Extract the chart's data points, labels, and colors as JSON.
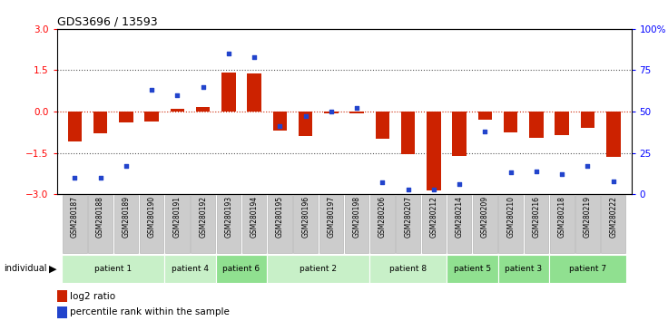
{
  "title": "GDS3696 / 13593",
  "samples": [
    "GSM280187",
    "GSM280188",
    "GSM280189",
    "GSM280190",
    "GSM280191",
    "GSM280192",
    "GSM280193",
    "GSM280194",
    "GSM280195",
    "GSM280196",
    "GSM280197",
    "GSM280198",
    "GSM280206",
    "GSM280207",
    "GSM280212",
    "GSM280214",
    "GSM280209",
    "GSM280210",
    "GSM280216",
    "GSM280218",
    "GSM280219",
    "GSM280222"
  ],
  "log2_ratio": [
    -1.1,
    -0.8,
    -0.4,
    -0.35,
    0.1,
    0.15,
    1.43,
    1.38,
    -0.7,
    -0.9,
    -0.05,
    -0.07,
    -1.0,
    -1.55,
    -2.85,
    -1.6,
    -0.3,
    -0.75,
    -0.95,
    -0.85,
    -0.6,
    -1.65
  ],
  "percentile": [
    10,
    10,
    17,
    63,
    60,
    65,
    85,
    83,
    41,
    47,
    50,
    52,
    7,
    3,
    3,
    6,
    38,
    13,
    14,
    12,
    17,
    8
  ],
  "patients": [
    {
      "label": "patient 1",
      "indices": [
        0,
        1,
        2,
        3
      ],
      "color": "#c8f0c8"
    },
    {
      "label": "patient 4",
      "indices": [
        4,
        5
      ],
      "color": "#c8f0c8"
    },
    {
      "label": "patient 6",
      "indices": [
        6,
        7
      ],
      "color": "#90e090"
    },
    {
      "label": "patient 2",
      "indices": [
        8,
        9,
        10,
        11
      ],
      "color": "#c8f0c8"
    },
    {
      "label": "patient 8",
      "indices": [
        12,
        13,
        14
      ],
      "color": "#c8f0c8"
    },
    {
      "label": "patient 5",
      "indices": [
        15,
        16
      ],
      "color": "#90e090"
    },
    {
      "label": "patient 3",
      "indices": [
        17,
        18
      ],
      "color": "#90e090"
    },
    {
      "label": "patient 7",
      "indices": [
        19,
        20,
        21
      ],
      "color": "#90e090"
    }
  ],
  "ylim_left": [
    -3,
    3
  ],
  "ylim_right": [
    0,
    100
  ],
  "yticks_left": [
    -3,
    -1.5,
    0,
    1.5,
    3
  ],
  "yticks_right": [
    0,
    25,
    50,
    75,
    100
  ],
  "ytick_labels_right": [
    "0",
    "25",
    "50",
    "75",
    "100%"
  ],
  "bar_color": "#cc2200",
  "scatter_color": "#2244cc",
  "hline_color": "#cc2200",
  "dotted_color": "#555555",
  "cell_color": "#cccccc",
  "cell_border": "#aaaaaa",
  "label_log2": "log2 ratio",
  "label_percentile": "percentile rank within the sample",
  "individual_label": "individual",
  "bar_width": 0.55,
  "scatter_size": 12
}
